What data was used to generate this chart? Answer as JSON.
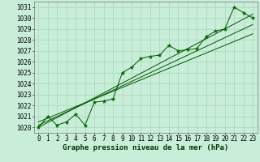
{
  "xlabel": "Graphe pression niveau de la mer (hPa)",
  "bg_color": "#c8edd8",
  "grid_color": "#a8d8b8",
  "line_color": "#005500",
  "marker_color": "#006600",
  "x": [
    0,
    1,
    2,
    3,
    4,
    5,
    6,
    7,
    8,
    9,
    10,
    11,
    12,
    13,
    14,
    15,
    16,
    17,
    18,
    19,
    20,
    21,
    22,
    23
  ],
  "y_main": [
    1020.0,
    1021.0,
    1020.2,
    1020.5,
    1021.2,
    1020.2,
    1022.3,
    1022.4,
    1022.6,
    1025.0,
    1025.5,
    1026.3,
    1026.5,
    1026.6,
    1027.5,
    1027.0,
    1027.1,
    1027.2,
    1028.3,
    1028.8,
    1029.0,
    1031.0,
    1030.5,
    1030.0
  ],
  "y_trend1": [
    1020.0,
    1020.45,
    1020.9,
    1021.35,
    1021.8,
    1022.25,
    1022.7,
    1023.15,
    1023.6,
    1024.05,
    1024.5,
    1024.95,
    1025.4,
    1025.85,
    1026.3,
    1026.75,
    1027.2,
    1027.65,
    1028.1,
    1028.55,
    1029.0,
    1029.45,
    1029.9,
    1030.35
  ],
  "y_trend2": [
    1020.2,
    1020.6,
    1021.0,
    1021.4,
    1021.8,
    1022.2,
    1022.6,
    1023.0,
    1023.4,
    1023.8,
    1024.2,
    1024.6,
    1025.0,
    1025.4,
    1025.8,
    1026.2,
    1026.6,
    1027.0,
    1027.4,
    1027.8,
    1028.2,
    1028.6,
    1029.0,
    1029.4
  ],
  "y_trend3": [
    1020.5,
    1020.85,
    1021.2,
    1021.55,
    1021.9,
    1022.25,
    1022.6,
    1022.95,
    1023.3,
    1023.65,
    1024.0,
    1024.35,
    1024.7,
    1025.05,
    1025.4,
    1025.75,
    1026.1,
    1026.45,
    1026.8,
    1027.15,
    1027.5,
    1027.85,
    1028.2,
    1028.55
  ],
  "ylim": [
    1019.5,
    1031.5
  ],
  "yticks": [
    1020,
    1021,
    1022,
    1023,
    1024,
    1025,
    1026,
    1027,
    1028,
    1029,
    1030,
    1031
  ],
  "xticks": [
    0,
    1,
    2,
    3,
    4,
    5,
    6,
    7,
    8,
    9,
    10,
    11,
    12,
    13,
    14,
    15,
    16,
    17,
    18,
    19,
    20,
    21,
    22,
    23
  ],
  "tick_fontsize": 5.5,
  "xlabel_fontsize": 6.5,
  "xlim": [
    -0.5,
    23.5
  ]
}
